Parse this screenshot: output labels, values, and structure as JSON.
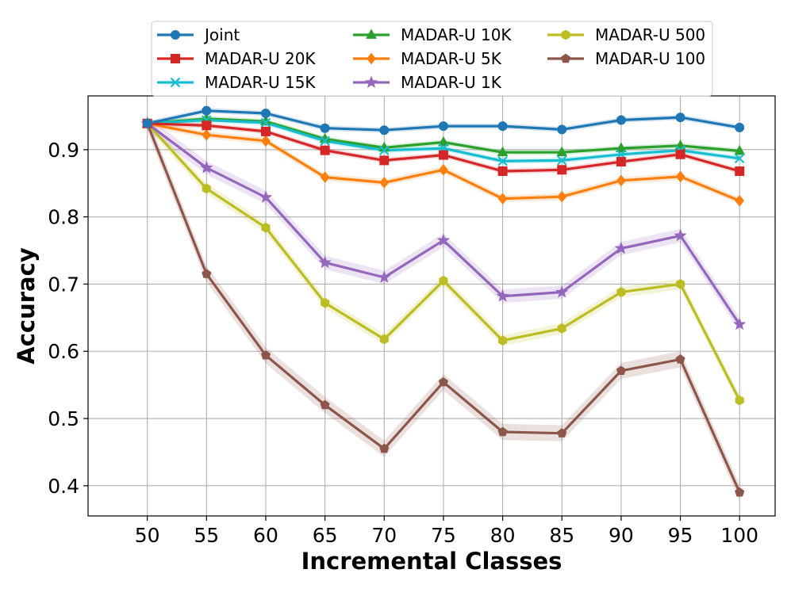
{
  "chart_data": {
    "type": "line",
    "title": "",
    "xlabel": "Incremental Classes",
    "ylabel": "Accuracy",
    "x": [
      50,
      55,
      60,
      65,
      70,
      75,
      80,
      85,
      90,
      95,
      100
    ],
    "x_tick_labels": [
      "50",
      "55",
      "60",
      "65",
      "70",
      "75",
      "80",
      "85",
      "90",
      "95",
      "100"
    ],
    "y_ticks": [
      0.4,
      0.5,
      0.6,
      0.7,
      0.8,
      0.9
    ],
    "y_tick_labels": [
      "0.4",
      "0.5",
      "0.6",
      "0.7",
      "0.8",
      "0.9"
    ],
    "xlim": [
      45,
      103
    ],
    "ylim": [
      0.355,
      0.98
    ],
    "grid": true,
    "legend_position": "top, outside plot, 3 columns",
    "series": [
      {
        "name": "Joint",
        "color": "#1f77b4",
        "marker": "circle",
        "band": 0.004,
        "values": [
          0.939,
          0.958,
          0.954,
          0.932,
          0.929,
          0.935,
          0.935,
          0.93,
          0.944,
          0.948,
          0.933
        ]
      },
      {
        "name": "MADAR-U 20K",
        "color": "#d62728",
        "marker": "square",
        "band": 0.004,
        "values": [
          0.939,
          0.936,
          0.927,
          0.899,
          0.884,
          0.892,
          0.868,
          0.87,
          0.882,
          0.893,
          0.868
        ]
      },
      {
        "name": "MADAR-U 15K",
        "color": "#17becf",
        "marker": "x",
        "band": 0.004,
        "values": [
          0.939,
          0.944,
          0.94,
          0.913,
          0.899,
          0.902,
          0.883,
          0.884,
          0.893,
          0.899,
          0.887
        ]
      },
      {
        "name": "MADAR-U 10K",
        "color": "#2ca02c",
        "marker": "triangle",
        "band": 0.004,
        "values": [
          0.939,
          0.946,
          0.942,
          0.916,
          0.903,
          0.911,
          0.896,
          0.896,
          0.902,
          0.906,
          0.898
        ]
      },
      {
        "name": "MADAR-U 5K",
        "color": "#ff7f0e",
        "marker": "diamond",
        "band": 0.005,
        "values": [
          0.939,
          0.922,
          0.913,
          0.859,
          0.851,
          0.87,
          0.827,
          0.83,
          0.854,
          0.86,
          0.824
        ]
      },
      {
        "name": "MADAR-U 1K",
        "color": "#9467bd",
        "marker": "star",
        "band": 0.01,
        "values": [
          0.939,
          0.873,
          0.829,
          0.732,
          0.71,
          0.765,
          0.682,
          0.688,
          0.753,
          0.772,
          0.64
        ]
      },
      {
        "name": "MADAR-U 500",
        "color": "#bcbd22",
        "marker": "hexagon",
        "band": 0.008,
        "values": [
          0.939,
          0.842,
          0.784,
          0.672,
          0.618,
          0.705,
          0.616,
          0.634,
          0.688,
          0.7,
          0.527
        ]
      },
      {
        "name": "MADAR-U 100",
        "color": "#8c564b",
        "marker": "pentagon",
        "band": 0.012,
        "values": [
          0.939,
          0.715,
          0.594,
          0.52,
          0.455,
          0.554,
          0.48,
          0.478,
          0.571,
          0.588,
          0.39
        ]
      }
    ]
  }
}
